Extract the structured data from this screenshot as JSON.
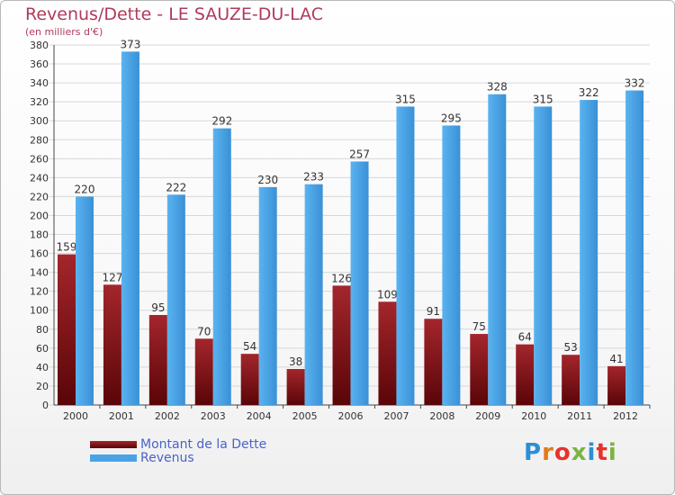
{
  "title": "Revenus/Dette - LE SAUZE-DU-LAC",
  "subtitle": "(en milliers d'€)",
  "logo": {
    "text": "Proxiti",
    "letter_colors": [
      "#2b8fd6",
      "#e07b1a",
      "#e6332a",
      "#7cb342",
      "#2b8fd6",
      "#e6332a",
      "#7cb342"
    ]
  },
  "chart_data": {
    "type": "bar",
    "categories": [
      "2000",
      "2001",
      "2002",
      "2003",
      "2004",
      "2005",
      "2006",
      "2007",
      "2008",
      "2009",
      "2010",
      "2011",
      "2012"
    ],
    "series": [
      {
        "name": "Montant de la Dette",
        "color": "#7a0c12",
        "values": [
          159,
          127,
          95,
          70,
          54,
          38,
          126,
          109,
          91,
          75,
          64,
          53,
          41
        ]
      },
      {
        "name": "Revenus",
        "color": "#4aa3e6",
        "values": [
          220,
          373,
          222,
          292,
          230,
          233,
          257,
          315,
          295,
          328,
          315,
          322,
          332
        ]
      }
    ],
    "ylim": [
      0,
      380
    ],
    "yticks": [
      0,
      20,
      40,
      60,
      80,
      100,
      120,
      140,
      160,
      180,
      200,
      220,
      240,
      260,
      280,
      300,
      320,
      340,
      360,
      380
    ],
    "grid": true,
    "legend": "bottom-left"
  }
}
